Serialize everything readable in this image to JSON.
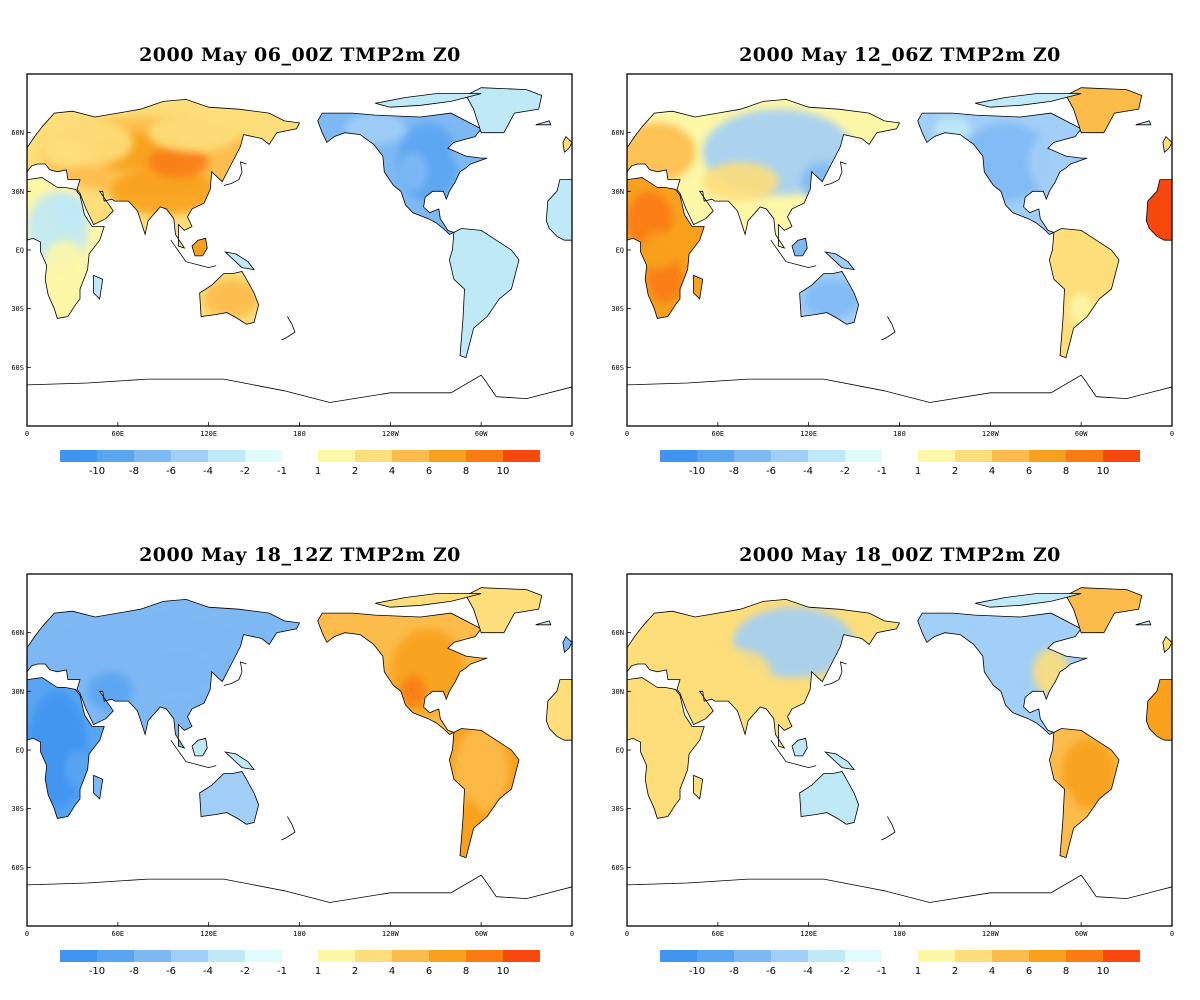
{
  "panels": [
    {
      "title": "2000 May 06_00Z TMP2m Z0",
      "pattern": "p1"
    },
    {
      "title": "2000 May 12_06Z TMP2m Z0",
      "pattern": "p2"
    },
    {
      "title": "2000 May 18_12Z TMP2m Z0",
      "pattern": "p3"
    },
    {
      "title": "2000 May 18_00Z TMP2m Z0",
      "pattern": "p4"
    }
  ],
  "axes": {
    "lat_labels": [
      "60N",
      "30N",
      "EQ",
      "30S",
      "60S"
    ],
    "lon_labels": [
      "0",
      "60E",
      "120E",
      "180",
      "120W",
      "60W",
      "0"
    ]
  },
  "colorbar": {
    "neg_colors": [
      "#3f95f0",
      "#5aa5f2",
      "#7fb9f4",
      "#a2cff7",
      "#bfe9f6",
      "#e1fbfd"
    ],
    "pos_colors": [
      "#fdf7a8",
      "#fdde7a",
      "#fcbc4b",
      "#f9a11f",
      "#f97b12",
      "#f7480e"
    ],
    "neg_labels": [
      "-10",
      "-8",
      "-6",
      "-4",
      "-2",
      "-1"
    ],
    "pos_labels": [
      "1",
      "2",
      "4",
      "6",
      "8",
      "10"
    ]
  }
}
